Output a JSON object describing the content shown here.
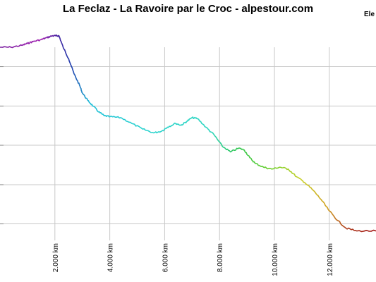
{
  "chart_data": {
    "type": "line",
    "title": "La Feclaz - La Ravoire par le Croc - alpestour.com",
    "legend_label": "Ele",
    "xlabel": "",
    "ylabel": "",
    "xlim": [
      0,
      13.7
    ],
    "ylim": [
      0,
      1
    ],
    "grid": true,
    "x_ticks": [
      {
        "value": 2,
        "label": "2.000 km"
      },
      {
        "value": 4,
        "label": "4.000 km"
      },
      {
        "value": 6,
        "label": "6.000 km"
      },
      {
        "value": 8,
        "label": "8.000 km"
      },
      {
        "value": 10,
        "label": "10.000 km"
      },
      {
        "value": 12,
        "label": "12.000 km"
      }
    ],
    "y_ticks": [
      0.072,
      0.278,
      0.485,
      0.691,
      0.898
    ],
    "series": [
      {
        "x": [
          0,
          0.4,
          0.8,
          1.0,
          1.2,
          1.5,
          1.7,
          1.9,
          2.05,
          2.15,
          2.3,
          2.5,
          2.7,
          2.9,
          3.0,
          3.2,
          3.4,
          3.6,
          3.8,
          4.0,
          4.4,
          4.8,
          5.2,
          5.6,
          5.9,
          6.1,
          6.4,
          6.6,
          6.8,
          7.0,
          7.2,
          7.5,
          7.8,
          8.1,
          8.4,
          8.7,
          8.9,
          9.1,
          9.3,
          9.6,
          9.9,
          10.2,
          10.5,
          10.8,
          11.1,
          11.4,
          11.7,
          12.0,
          12.3,
          12.6,
          13.0,
          13.7
        ],
        "y": [
          1.0,
          1.0,
          1.01,
          1.02,
          1.03,
          1.04,
          1.05,
          1.06,
          1.06,
          1.06,
          1.0,
          0.94,
          0.86,
          0.8,
          0.76,
          0.72,
          0.69,
          0.66,
          0.64,
          0.635,
          0.63,
          0.6,
          0.57,
          0.55,
          0.56,
          0.58,
          0.6,
          0.59,
          0.61,
          0.63,
          0.625,
          0.58,
          0.54,
          0.48,
          0.45,
          0.47,
          0.46,
          0.42,
          0.39,
          0.37,
          0.36,
          0.37,
          0.36,
          0.32,
          0.29,
          0.25,
          0.2,
          0.14,
          0.09,
          0.05,
          0.035,
          0.035
        ]
      }
    ]
  }
}
